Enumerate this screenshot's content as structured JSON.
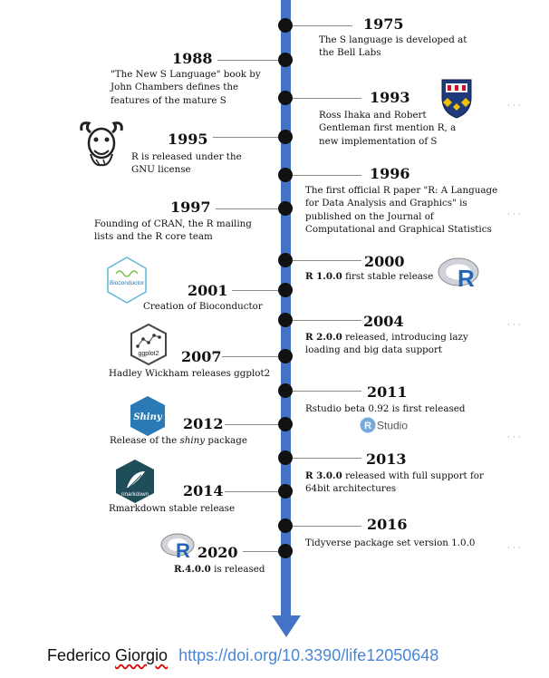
{
  "colors": {
    "axis": "#4472C4",
    "dot": "#111111",
    "link": "#4a86d6"
  },
  "events": [
    {
      "year": "1975",
      "desc": "The S language is developed at the Bell Labs"
    },
    {
      "year": "1988",
      "desc": "\"The New S Language\" book by John Chambers defines the features of the mature S"
    },
    {
      "year": "1993",
      "desc": "Ross Ihaka and Robert Gentleman first mention R, a new implementation of S"
    },
    {
      "year": "1995",
      "desc": "R is released under the GNU license"
    },
    {
      "year": "1996",
      "desc": "The first official R paper \"R: A Language for Data Analysis and Graphics\" is published on the Journal of Computational and Graphical Statistics"
    },
    {
      "year": "1997",
      "desc": "Founding of CRAN, the R mailing lists and the R core team"
    },
    {
      "year": "2000",
      "desc_bold": "R 1.0.0",
      "desc": " first stable release"
    },
    {
      "year": "2001",
      "desc": "Creation of Bioconductor"
    },
    {
      "year": "2004",
      "desc_bold": "R 2.0.0",
      "desc": " released, introducing lazy loading and big data support"
    },
    {
      "year": "2007",
      "desc": "Hadley Wickham releases ggplot2"
    },
    {
      "year": "2011",
      "desc": "Rstudio beta 0.92 is first released"
    },
    {
      "year": "2012",
      "desc_pre": "Release of the ",
      "desc_italic": "shiny",
      "desc": " package"
    },
    {
      "year": "2013",
      "desc_bold": "R 3.0.0",
      "desc": " released with full support for 64bit architectures"
    },
    {
      "year": "2014",
      "desc": "Rmarkdown stable release"
    },
    {
      "year": "2016",
      "desc": "Tidyverse package set version 1.0.0"
    },
    {
      "year": "2020",
      "desc_bold": "R.4.0.0",
      "desc": " is released"
    }
  ],
  "logos": {
    "bioconductor": "Bioconductor",
    "ggplot2": "ggplot2",
    "shiny": "Shiny",
    "rmarkdown": "rmarkdown",
    "rstudio_r": "R",
    "rstudio_text": "Studio",
    "r_letter": "R"
  },
  "footer": {
    "author_first": "Federico ",
    "author_last": "Giorgio",
    "doi": "https://doi.org/10.3390/life12050648"
  }
}
